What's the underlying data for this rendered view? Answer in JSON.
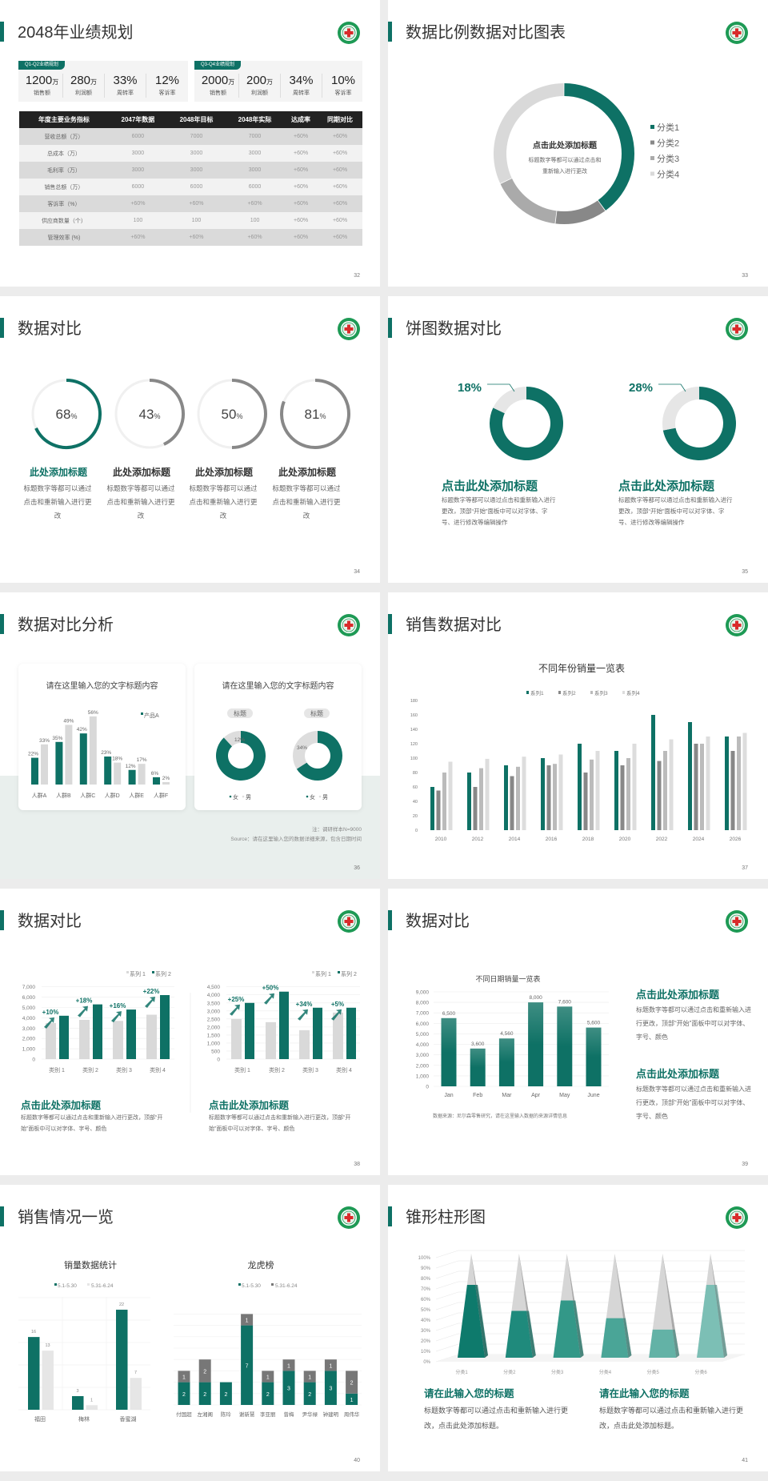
{
  "colors": {
    "accent": "#0e7165",
    "dark_gray": "#888888",
    "light_gray": "#d9d9d9",
    "header_bg": "#222222"
  },
  "s32": {
    "title": "2048年业绩规划",
    "page": "32",
    "kpi_groups": [
      {
        "tag": "Q1-Q2业绩规划",
        "items": [
          {
            "value": "1200",
            "unit": "万",
            "label": "销售额"
          },
          {
            "value": "280",
            "unit": "万",
            "label": "利润额"
          },
          {
            "value": "33%",
            "unit": "",
            "label": "周转率"
          },
          {
            "value": "12%",
            "unit": "",
            "label": "客诉率"
          }
        ]
      },
      {
        "tag": "Q3-Q4业绩规划",
        "items": [
          {
            "value": "2000",
            "unit": "万",
            "label": "销售额"
          },
          {
            "value": "200",
            "unit": "万",
            "label": "利润额"
          },
          {
            "value": "34%",
            "unit": "",
            "label": "周转率"
          },
          {
            "value": "10%",
            "unit": "",
            "label": "客诉率"
          }
        ]
      }
    ],
    "table": {
      "headers": [
        "年度主要业务指标",
        "2047年数据",
        "2048年目标",
        "2048年实际",
        "达成率",
        "同期对比"
      ],
      "rows": [
        [
          "营收总额（万）",
          "6000",
          "7000",
          "7000",
          "+60%",
          "+60%"
        ],
        [
          "总成本（万）",
          "3000",
          "3000",
          "3000",
          "+60%",
          "+60%"
        ],
        [
          "毛利率（万）",
          "3000",
          "3000",
          "3000",
          "+60%",
          "+60%"
        ],
        [
          "销售总额（万）",
          "6000",
          "6000",
          "6000",
          "+60%",
          "+60%"
        ],
        [
          "客诉率（%）",
          "+60%",
          "+60%",
          "+60%",
          "+60%",
          "+60%"
        ],
        [
          "供应商数量（个）",
          "100",
          "100",
          "100",
          "+60%",
          "+60%"
        ],
        [
          "管理效率 (%)",
          "+60%",
          "+60%",
          "+60%",
          "+60%",
          "+60%"
        ]
      ]
    }
  },
  "s33": {
    "title": "数据比例数据对比图表",
    "page": "33",
    "center_title": "点击此处添加标题",
    "center_text_1": "标题数字等都可以通过点击和",
    "center_text_2": "重新输入进行更改",
    "chart_data": {
      "type": "pie",
      "donut": true,
      "categories": [
        "分类1",
        "分类2",
        "分类3",
        "分类4"
      ],
      "values": [
        40,
        12,
        16,
        32
      ],
      "colors": [
        "#0e7165",
        "#888888",
        "#aaaaaa",
        "#d9d9d9"
      ],
      "legend": "right"
    }
  },
  "s34": {
    "title": "数据对比",
    "page": "34",
    "rings": [
      {
        "value": "68",
        "pct": "%",
        "percent": 68,
        "title": "此处添加标题",
        "desc": "标题数字等都可以通过点击和重新输入进行更改",
        "color": "#0e7165"
      },
      {
        "value": "43",
        "pct": "%",
        "percent": 43,
        "title": "此处添加标题",
        "desc": "标题数字等都可以通过点击和重新输入进行更改",
        "color": "#888888"
      },
      {
        "value": "50",
        "pct": "%",
        "percent": 50,
        "title": "此处添加标题",
        "desc": "标题数字等都可以通过点击和重新输入进行更改",
        "color": "#888888"
      },
      {
        "value": "81",
        "pct": "%",
        "percent": 81,
        "title": "此处添加标题",
        "desc": "标题数字等都可以通过点击和重新输入进行更改",
        "color": "#888888"
      }
    ]
  },
  "s35": {
    "title": "饼图数据对比",
    "page": "35",
    "donuts": [
      {
        "label": "18%",
        "percent": 18,
        "title": "点击此处添加标题",
        "desc": "标题数字等都可以通过点击和重新输入进行更改，顶部“开始”面板中可以对字体、字号、进行修改等编辑操作"
      },
      {
        "label": "28%",
        "percent": 28,
        "title": "点击此处添加标题",
        "desc": "标题数字等都可以通过点击和重新输入进行更改，顶部“开始”面板中可以对字体、字号、进行修改等编辑操作"
      }
    ]
  },
  "s36": {
    "title": "数据对比分析",
    "page": "36",
    "note": "注：调研样本N=9000",
    "source": "Source：请在这里输入您的数据详细来源，包含日期时间",
    "bar_card": {
      "title": "请在这里输入您的文字标题内容",
      "chart_data": {
        "type": "bar",
        "categories": [
          "人群A",
          "人群B",
          "人群C",
          "人群D",
          "人群E",
          "人群F"
        ],
        "series": [
          {
            "name": "产品A",
            "values": [
              22,
              35,
              42,
              23,
              12,
              6
            ]
          },
          {
            "values": [
              33,
              49,
              56,
              18,
              17,
              2
            ]
          }
        ],
        "labels": [
          [
            "22%",
            "35%",
            "42%",
            "23%",
            "12%",
            "6%"
          ],
          [
            "33%",
            "49%",
            "56%",
            "18%",
            "17%",
            "2%"
          ]
        ]
      }
    },
    "donut_card": {
      "title": "请在这里输入您的文字标题内容",
      "legend": [
        "女",
        "男"
      ],
      "chart_data": [
        {
          "type": "pie",
          "tag": "标题",
          "categories": [
            "女",
            "男"
          ],
          "values": [
            88,
            12
          ],
          "label": "12%"
        },
        {
          "type": "pie",
          "tag": "标题",
          "categories": [
            "女",
            "男"
          ],
          "values": [
            66,
            34
          ],
          "label": "34%"
        }
      ]
    }
  },
  "s37": {
    "title": "销售数据对比",
    "page": "37",
    "chart_data": {
      "type": "bar",
      "title": "不同年份销量一览表",
      "categories": [
        "2010",
        "2012",
        "2014",
        "2016",
        "2018",
        "2020",
        "2022",
        "2024",
        "2026"
      ],
      "ylim": [
        0,
        180
      ],
      "yticks": [
        "0",
        "20",
        "40",
        "60",
        "80",
        "100",
        "120",
        "140",
        "160",
        "180"
      ],
      "legend": "top",
      "series": [
        {
          "name": "系列1",
          "values": [
            60,
            80,
            90,
            100,
            120,
            110,
            160,
            150,
            130
          ]
        },
        {
          "name": "系列2",
          "values": [
            55,
            60,
            75,
            90,
            80,
            90,
            96,
            120,
            110
          ]
        },
        {
          "name": "系列3",
          "values": [
            80,
            86,
            88,
            92,
            98,
            100,
            110,
            120,
            130
          ]
        },
        {
          "name": "系列4",
          "values": [
            95,
            99,
            102,
            105,
            110,
            120,
            126,
            130,
            135
          ]
        }
      ],
      "colors": [
        "#0e7165",
        "#888888",
        "#bbbbbb",
        "#dddddd"
      ]
    }
  },
  "s38": {
    "title": "数据对比",
    "page": "38",
    "charts": [
      {
        "chart_data": {
          "type": "bar",
          "categories": [
            "类别 1",
            "类别 2",
            "类别 3",
            "类别 4"
          ],
          "ylim": [
            0,
            7000
          ],
          "yticks": [
            "0",
            "1,000",
            "2,000",
            "3,000",
            "4,000",
            "5,000",
            "6,000",
            "7,000"
          ],
          "series": [
            {
              "name": "系列 1",
              "values": [
                3500,
                3800,
                3700,
                4300
              ]
            },
            {
              "name": "系列 2",
              "values": [
                4200,
                5300,
                4800,
                6200
              ]
            }
          ],
          "growth": [
            "+10%",
            "+18%",
            "+16%",
            "+22%"
          ]
        },
        "title": "点击此处添加标题",
        "desc": "标题数字等都可以通过点击和重新输入进行更改，顶部“开始”面板中可以对字体、字号、颜色"
      },
      {
        "chart_data": {
          "type": "bar",
          "categories": [
            "类别 1",
            "类别 2",
            "类别 3",
            "类别 4"
          ],
          "ylim": [
            0,
            4500
          ],
          "yticks": [
            "0",
            "500",
            "1,000",
            "1,500",
            "2,000",
            "2,500",
            "3,000",
            "3,500",
            "4,000",
            "4,500"
          ],
          "series": [
            {
              "name": "系列 1",
              "values": [
                2500,
                2300,
                1800,
                2900
              ]
            },
            {
              "name": "系列 2",
              "values": [
                3500,
                4200,
                3200,
                3200
              ]
            }
          ],
          "growth": [
            "+25%",
            "+50%",
            "+34%",
            "+5%"
          ]
        },
        "title": "点击此处添加标题",
        "desc": "标题数字等都可以通过点击和重新输入进行更改，顶部“开始”面板中可以对字体、字号、颜色"
      }
    ]
  },
  "s39": {
    "title": "数据对比",
    "page": "39",
    "source": "数据来源：尼尔森零售研究，请在这里输入数据的来源详情信息",
    "chart_data": {
      "type": "bar",
      "title": "不同日期销量一览表",
      "categories": [
        "Jan",
        "Feb",
        "Mar",
        "Apr",
        "May",
        "June"
      ],
      "values": [
        6500,
        3600,
        4560,
        8000,
        7600,
        5600
      ],
      "labels": [
        "6,500",
        "3,600",
        "4,560",
        "8,000",
        "7,600",
        "5,600"
      ],
      "ylim": [
        0,
        9000
      ],
      "yticks": [
        "0",
        "1,000",
        "2,000",
        "3,000",
        "4,000",
        "5,000",
        "6,000",
        "7,000",
        "8,000",
        "9,000"
      ]
    },
    "blocks": [
      {
        "title": "点击此处添加标题",
        "desc": "标题数字等都可以通过点击和重新输入进行更改，顶部“开始”面板中可以对字体、字号、颜色"
      },
      {
        "title": "点击此处添加标题",
        "desc": "标题数字等都可以通过点击和重新输入进行更改，顶部“开始”面板中可以对字体、字号、颜色"
      }
    ]
  },
  "s40": {
    "title": "销售情况一览",
    "page": "40",
    "left": {
      "title": "销量数据统计",
      "chart_data": {
        "type": "bar",
        "categories": [
          "福田",
          "梅林",
          "香蜜湖"
        ],
        "series": [
          {
            "name": "5.1-5.30",
            "values": [
              16,
              3,
              22
            ]
          },
          {
            "name": "5.31-6.24",
            "values": [
              13,
              1,
              7
            ]
          }
        ]
      }
    },
    "right": {
      "title": "龙虎榜",
      "chart_data": {
        "type": "bar",
        "stacked": true,
        "categories": [
          "付国超",
          "左湘阁",
          "陈玲",
          "谢新慧",
          "李亚丽",
          "曾梅",
          "尹华禄",
          "钟建明",
          "周伟华"
        ],
        "series": [
          {
            "name": "5.1-5.30",
            "values": [
              2,
              2,
              2,
              7,
              2,
              3,
              2,
              3,
              1
            ]
          },
          {
            "name": "5.31-6.24",
            "values": [
              1,
              2,
              0,
              1,
              1,
              1,
              1,
              1,
              2
            ]
          }
        ]
      }
    }
  },
  "s41": {
    "title": "锥形柱形图",
    "page": "41",
    "chart_data": {
      "type": "bar",
      "shape": "cone",
      "categories": [
        "分类1",
        "分类2",
        "分类3",
        "分类4",
        "分类5",
        "分类6"
      ],
      "values": [
        70,
        45,
        55,
        38,
        27,
        70
      ],
      "ylim": [
        0,
        100
      ],
      "yticks": [
        "0%",
        "10%",
        "20%",
        "30%",
        "40%",
        "50%",
        "60%",
        "70%",
        "80%",
        "90%",
        "100%"
      ],
      "colors": [
        "#0e7a6c",
        "#1f8a7c",
        "#339888",
        "#4aa597",
        "#63b2a6",
        "#7cbfb5"
      ]
    },
    "blocks": [
      {
        "title": "请在此输入您的标题",
        "desc": "标题数字等都可以通过点击和重新输入进行更改，点击此处添加标题。"
      },
      {
        "title": "请在此输入您的标题",
        "desc": "标题数字等都可以通过点击和重新输入进行更改，点击此处添加标题。"
      }
    ]
  }
}
